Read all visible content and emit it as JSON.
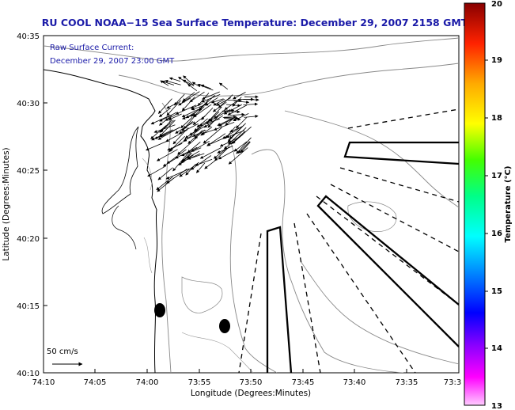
{
  "chart_data": {
    "type": "map",
    "title": "RU COOL  NOAA−15  Sea Surface Temperature:  December 29, 2007 2158 GMT",
    "annotation_lines": [
      "Raw Surface Current:",
      "December 29, 2007 23:00 GMT"
    ],
    "xlabel": "Longitude (Degrees:Minutes)",
    "ylabel": "Latitude (Degrees:Minutes)",
    "x_ticks": [
      "74:10",
      "74:05",
      "74:00",
      "73:55",
      "73:50",
      "73:45",
      "73:40",
      "73:35",
      "73:3"
    ],
    "y_ticks": [
      "40:35",
      "40:30",
      "40:25",
      "40:20",
      "40:15",
      "40:10"
    ],
    "x_range_deg": [
      -74.1667,
      -73.5
    ],
    "y_range_deg": [
      40.1667,
      40.5833
    ],
    "scale_label": "50 cm/s",
    "colorbar": {
      "label": "Temperature (°C)",
      "min": 13,
      "max": 20,
      "ticks": [
        "13",
        "14",
        "15",
        "16",
        "17",
        "18",
        "19",
        "20"
      ],
      "colors": [
        "#ff00ff",
        "#8800ff",
        "#0000ff",
        "#0088ff",
        "#00ffff",
        "#00ff88",
        "#88ff00",
        "#ffff00",
        "#ffaa00",
        "#ff5500",
        "#ff0000",
        "#880000"
      ]
    },
    "vector_field": {
      "description_region": "northwest",
      "grid_lon_range": [
        -74.03,
        -73.93
      ],
      "grid_lat_range": [
        40.41,
        40.56
      ],
      "dominant_direction_deg_from_east": 140,
      "vector_count_approx": 140
    },
    "dots": [
      {
        "lon": -73.985,
        "lat": 40.245
      },
      {
        "lon": -73.932,
        "lat": 40.227
      }
    ]
  }
}
